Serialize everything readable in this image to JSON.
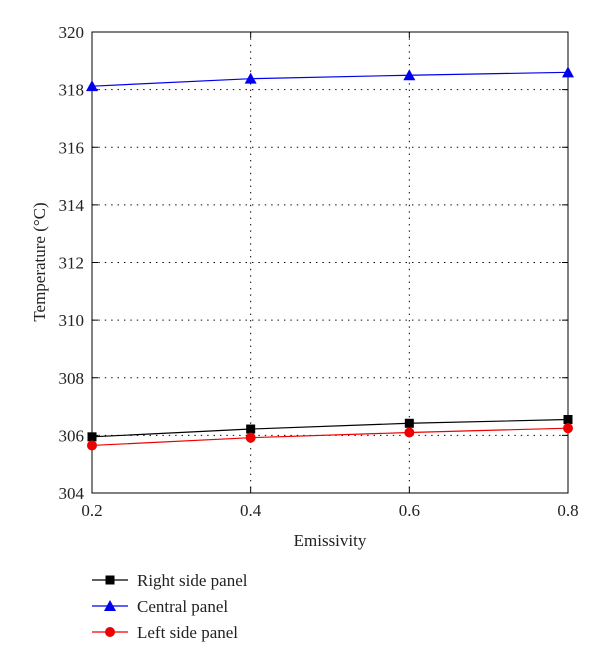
{
  "chart_data": {
    "type": "line",
    "title": "",
    "xlabel": "Emissivity",
    "ylabel": "Temperature (°C)",
    "x": [
      0.2,
      0.4,
      0.6,
      0.8
    ],
    "x_ticks": [
      "0.2",
      "0.4",
      "0.6",
      "0.8"
    ],
    "xlim": [
      0.2,
      0.8
    ],
    "y_ticks": [
      "304",
      "306",
      "308",
      "310",
      "312",
      "314",
      "316",
      "318",
      "320"
    ],
    "ylim": [
      304,
      320
    ],
    "grid": true,
    "legend_position": "bottom-left, below plot",
    "series": [
      {
        "name": "Right side panel",
        "color": "#000000",
        "marker": "square",
        "values": [
          305.95,
          306.22,
          306.42,
          306.55
        ]
      },
      {
        "name": "Central panel",
        "color": "#0000ee",
        "marker": "triangle",
        "values": [
          318.12,
          318.38,
          318.5,
          318.6
        ]
      },
      {
        "name": "Left side panel",
        "color": "#ee0000",
        "marker": "circle",
        "values": [
          305.65,
          305.92,
          306.1,
          306.25
        ]
      }
    ]
  }
}
